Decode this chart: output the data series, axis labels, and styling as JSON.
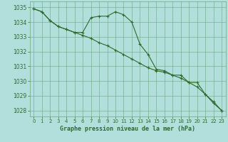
{
  "title": "Graphe pression niveau de la mer (hPa)",
  "bg_color": "#b2dfdb",
  "grid_color": "#6aaa7a",
  "line_color": "#2d6a2d",
  "xlim": [
    -0.5,
    23.5
  ],
  "ylim": [
    1027.6,
    1035.4
  ],
  "yticks": [
    1028,
    1029,
    1030,
    1031,
    1032,
    1033,
    1034,
    1035
  ],
  "xticks": [
    0,
    1,
    2,
    3,
    4,
    5,
    6,
    7,
    8,
    9,
    10,
    11,
    12,
    13,
    14,
    15,
    16,
    17,
    18,
    19,
    20,
    21,
    22,
    23
  ],
  "series1_x": [
    0,
    1,
    2,
    3,
    4,
    5,
    6,
    7,
    8,
    9,
    10,
    11,
    12,
    13,
    14,
    15,
    16,
    17,
    18,
    19,
    20,
    21,
    22,
    23
  ],
  "series1_y": [
    1034.9,
    1034.7,
    1034.1,
    1033.7,
    1033.5,
    1033.3,
    1033.3,
    1034.3,
    1034.4,
    1034.4,
    1034.7,
    1034.5,
    1034.0,
    1032.5,
    1031.8,
    1030.8,
    1030.7,
    1030.4,
    1030.4,
    1029.9,
    1029.9,
    1029.1,
    1028.5,
    1028.0
  ],
  "series2_x": [
    0,
    1,
    2,
    3,
    4,
    5,
    6,
    7,
    8,
    9,
    10,
    11,
    12,
    13,
    14,
    15,
    16,
    17,
    18,
    19,
    20,
    21,
    22,
    23
  ],
  "series2_y": [
    1034.9,
    1034.7,
    1034.1,
    1033.7,
    1033.5,
    1033.3,
    1033.1,
    1032.9,
    1032.6,
    1032.4,
    1032.1,
    1031.8,
    1031.5,
    1031.2,
    1030.9,
    1030.7,
    1030.6,
    1030.4,
    1030.2,
    1029.9,
    1029.6,
    1029.1,
    1028.6,
    1028.0
  ]
}
